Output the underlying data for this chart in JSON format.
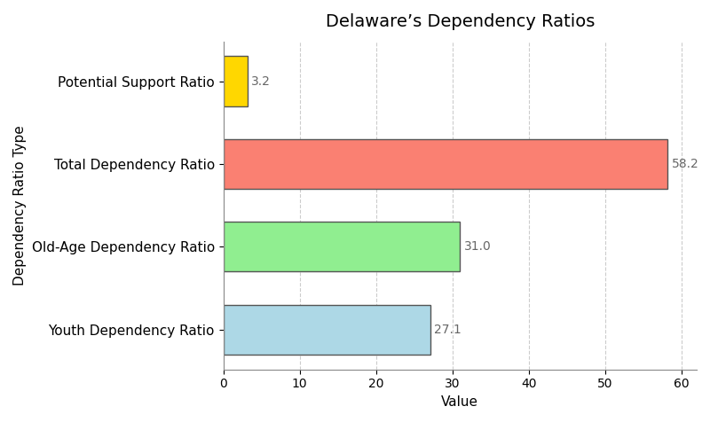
{
  "categories": [
    "Youth Dependency Ratio",
    "Old-Age Dependency Ratio",
    "Total Dependency Ratio",
    "Potential Support Ratio"
  ],
  "values": [
    27.1,
    31.0,
    58.2,
    3.2
  ],
  "bar_colors": [
    "#ADD8E6",
    "#90EE90",
    "#FA8072",
    "#FFD700"
  ],
  "bar_edgecolors": [
    "#555555",
    "#555555",
    "#555555",
    "#555555"
  ],
  "title": "Delaware’s Dependency Ratios",
  "xlabel": "Value",
  "ylabel": "Dependency Ratio Type",
  "xlim": [
    0,
    62
  ],
  "title_fontsize": 14,
  "label_fontsize": 11,
  "tick_fontsize": 10,
  "value_label_fontsize": 10,
  "background_color": "#ffffff",
  "grid_color": "#cccccc",
  "bar_height": 0.6
}
